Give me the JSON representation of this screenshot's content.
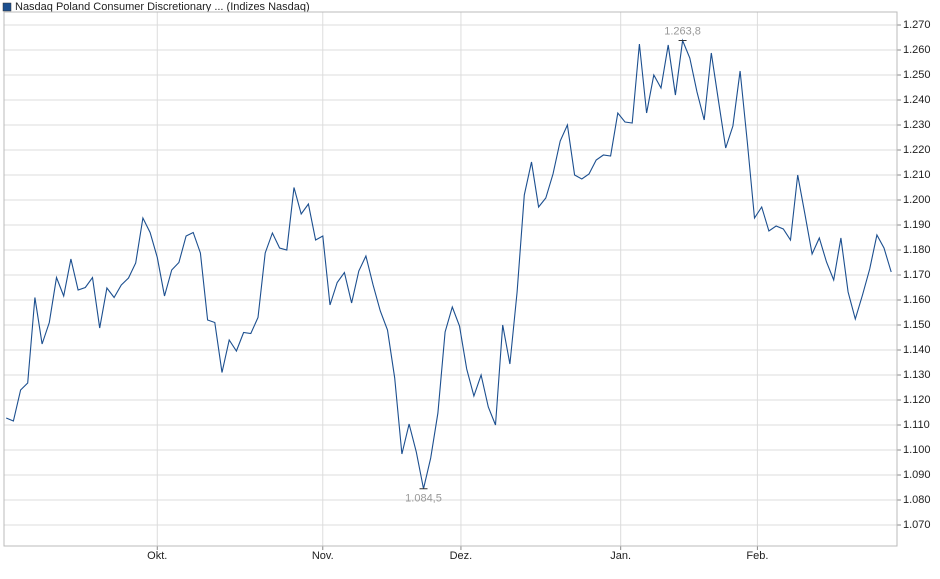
{
  "chart_data": {
    "type": "line",
    "series": [
      {
        "name": "Nasdaq Poland Consumer Discretionary ... (Indizes Nasdaq)",
        "color": "#1c4f8f",
        "values": [
          1112.8,
          1111.6,
          1124,
          1126.8,
          1161,
          1142.4,
          1151,
          1169,
          1161.6,
          1176.4,
          1164,
          1165,
          1169,
          1148.8,
          1164.8,
          1161,
          1166,
          1168.8,
          1174.8,
          1192.8,
          1187,
          1177,
          1161.6,
          1172,
          1175,
          1185.6,
          1187,
          1178.8,
          1152,
          1151,
          1131,
          1144,
          1139.6,
          1147,
          1146.6,
          1153,
          1178.8,
          1186.8,
          1180.8,
          1180,
          1205,
          1194.4,
          1198.4,
          1184,
          1185.6,
          1158,
          1167,
          1171,
          1158.8,
          1171.6,
          1177.6,
          1166,
          1155.6,
          1148,
          1128.8,
          1098.4,
          1110.4,
          1099.2,
          1084.5,
          1096.8,
          1114.8,
          1147.2,
          1157.2,
          1149.6,
          1132.4,
          1121.6,
          1130,
          1117.2,
          1110,
          1150,
          1134.4,
          1163.2,
          1202,
          1215.2,
          1197.2,
          1200.8,
          1210.4,
          1223.6,
          1230,
          1210,
          1208.4,
          1210.4,
          1216,
          1218,
          1217.6,
          1234.8,
          1231.2,
          1230.8,
          1262.4,
          1234.8,
          1250,
          1244.8,
          1262,
          1242,
          1263.8,
          1256.8,
          1243.2,
          1232,
          1258.8,
          1239.6,
          1220.8,
          1229.6,
          1251.6,
          1223.2,
          1192.8,
          1197.2,
          1187.6,
          1189.6,
          1188.4,
          1184,
          1210,
          1194.4,
          1178.4,
          1184.8,
          1175.2,
          1168,
          1184.8,
          1163.2,
          1152.4,
          1162,
          1172.4,
          1186,
          1180.8,
          1171.2
        ],
        "value_labels": [
          null,
          null,
          null,
          null,
          null,
          null,
          null,
          null,
          null,
          null,
          null,
          null,
          null,
          null,
          null,
          null,
          null,
          null,
          null,
          null,
          null,
          null,
          null,
          null,
          null,
          null,
          null,
          null,
          null,
          null,
          null,
          null,
          null,
          null,
          null,
          null,
          null,
          null,
          null,
          null,
          null,
          null,
          null,
          null,
          null,
          null,
          null,
          null,
          null,
          null,
          null,
          null,
          null,
          null,
          null,
          null,
          null,
          null,
          "1.084,5",
          null,
          null,
          null,
          null,
          null,
          null,
          null,
          null,
          null,
          null,
          null,
          null,
          null,
          null,
          null,
          null,
          null,
          null,
          null,
          null,
          null,
          null,
          null,
          null,
          null,
          null,
          null,
          null,
          null,
          null,
          null,
          null,
          null,
          null,
          null,
          "1.263,8",
          null,
          null,
          null,
          null,
          null,
          null,
          null,
          null,
          null,
          null,
          null,
          null,
          null,
          null,
          null,
          null,
          null,
          null,
          null,
          null,
          null,
          null,
          null,
          null,
          null,
          null,
          null,
          null,
          null
        ]
      }
    ],
    "xlim": [
      -0.3,
      123.8
    ],
    "xticks": [
      {
        "value": 21,
        "label": "Okt."
      },
      {
        "value": 44,
        "label": "Nov."
      },
      {
        "value": 63.2,
        "label": "Dez."
      },
      {
        "value": 85.4,
        "label": "Jan."
      },
      {
        "value": 104.4,
        "label": "Feb."
      }
    ],
    "ylim": [
      1061.6,
      1275.2
    ],
    "yticks": [
      {
        "value": 1070,
        "label": "1.070"
      },
      {
        "value": 1080,
        "label": "1.080"
      },
      {
        "value": 1090,
        "label": "1.090"
      },
      {
        "value": 1100,
        "label": "1.100"
      },
      {
        "value": 1110,
        "label": "1.110"
      },
      {
        "value": 1120,
        "label": "1.120"
      },
      {
        "value": 1130,
        "label": "1.130"
      },
      {
        "value": 1140,
        "label": "1.140"
      },
      {
        "value": 1150,
        "label": "1.150"
      },
      {
        "value": 1160,
        "label": "1.160"
      },
      {
        "value": 1170,
        "label": "1.170"
      },
      {
        "value": 1180,
        "label": "1.180"
      },
      {
        "value": 1190,
        "label": "1.190"
      },
      {
        "value": 1200,
        "label": "1.200"
      },
      {
        "value": 1210,
        "label": "1.210"
      },
      {
        "value": 1220,
        "label": "1.220"
      },
      {
        "value": 1230,
        "label": "1.230"
      },
      {
        "value": 1240,
        "label": "1.240"
      },
      {
        "value": 1250,
        "label": "1.250"
      },
      {
        "value": 1260,
        "label": "1.260"
      },
      {
        "value": 1270,
        "label": "1.270"
      }
    ],
    "grid": true
  }
}
